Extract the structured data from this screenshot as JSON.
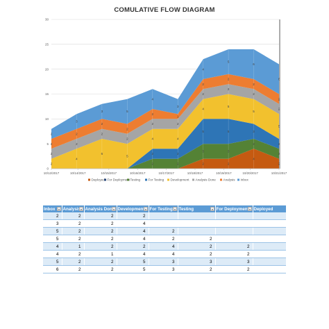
{
  "chart_data": {
    "type": "area",
    "title": "COMULATIVE FLOW DIAGRAM",
    "xlabel": "",
    "ylabel": "",
    "ylim": [
      0,
      30
    ],
    "yticks": [
      0,
      5,
      10,
      15,
      20,
      25,
      30
    ],
    "categories": [
      "10/12/2017",
      "10/13/2017",
      "10/14/2017",
      "10/15/2017",
      "10/16/2017",
      "10/17/2017",
      "10/18/2017",
      "10/19/2017",
      "10/20/2017",
      "10/21/2017"
    ],
    "tick_labels": [
      "10/12/2017",
      "10/14/2017",
      "10/15/2017",
      "10/16/2017",
      "10/17/2017",
      "10/18/2017",
      "10/19/2017",
      "10/20/2017",
      "10/21/2017"
    ],
    "stack_order": [
      "Deployed",
      "For Deployment",
      "Testing",
      "For Testing",
      "Development",
      "Analysis Done",
      "Analysis",
      "Inbox"
    ],
    "series": [
      {
        "name": "Deployed",
        "color": "#c55a11",
        "values": [
          0,
          0,
          0,
          0,
          0,
          0,
          2,
          2,
          4,
          2
        ]
      },
      {
        "name": "For Deployment",
        "color": "#264478",
        "values": [
          0,
          0,
          0,
          0,
          0,
          0,
          0,
          0,
          0,
          0
        ]
      },
      {
        "name": "Testing",
        "color": "#548235",
        "values": [
          0,
          0,
          0,
          0,
          2,
          2,
          3,
          3,
          2,
          2
        ]
      },
      {
        "name": "For Testing",
        "color": "#2e75b6",
        "values": [
          0,
          0,
          0,
          0,
          2,
          2,
          5,
          5,
          3,
          2
        ]
      },
      {
        "name": "Development",
        "color": "#f2c12e",
        "values": [
          2,
          4,
          6,
          5,
          4,
          4,
          4,
          5,
          5,
          5
        ]
      },
      {
        "name": "Analysis Done",
        "color": "#a5a5a5",
        "values": [
          2,
          2,
          2,
          2,
          2,
          2,
          2,
          2,
          2,
          2
        ]
      },
      {
        "name": "Analysis",
        "color": "#ed7d31",
        "values": [
          2,
          2,
          2,
          2,
          2,
          1,
          2,
          2,
          2,
          2
        ]
      },
      {
        "name": "Inbox",
        "color": "#5b9bd5",
        "values": [
          2,
          3,
          3,
          5,
          4,
          3,
          4,
          5,
          6,
          6
        ]
      }
    ]
  },
  "table": {
    "headers": [
      "Inbox",
      "Analysis",
      "Analysis Done",
      "Development",
      "For Testing",
      "Testing",
      "For Deployment",
      "Deployed"
    ],
    "rows": [
      [
        "2",
        "2",
        "2",
        "2",
        "",
        "",
        "",
        ""
      ],
      [
        "3",
        "2",
        "2",
        "4",
        "",
        "",
        "",
        ""
      ],
      [
        "5",
        "2",
        "2",
        "4",
        "2",
        "",
        "",
        ""
      ],
      [
        "5",
        "2",
        "2",
        "4",
        "2",
        "2",
        "",
        ""
      ],
      [
        "4",
        "1",
        "2",
        "2",
        "4",
        "2",
        "2",
        ""
      ],
      [
        "4",
        "2",
        "1",
        "4",
        "4",
        "2",
        "2",
        "2"
      ],
      [
        "5",
        "2",
        "2",
        "5",
        "3",
        "3",
        "3",
        "2"
      ],
      [
        "6",
        "2",
        "2",
        "5",
        "3",
        "2",
        "2",
        "4"
      ],
      [
        "6",
        "2",
        "2",
        "5",
        "4",
        "2",
        "2",
        "2"
      ]
    ]
  }
}
